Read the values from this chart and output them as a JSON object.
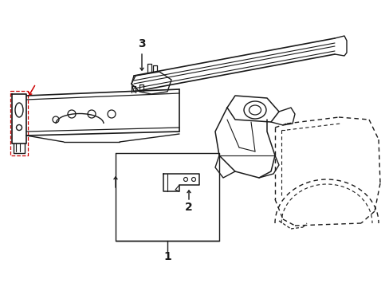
{
  "background_color": "#ffffff",
  "line_color": "#1a1a1a",
  "red_color": "#cc0000",
  "label1": "1",
  "label2": "2",
  "label3": "3",
  "figsize": [
    4.89,
    3.6
  ],
  "dpi": 100
}
